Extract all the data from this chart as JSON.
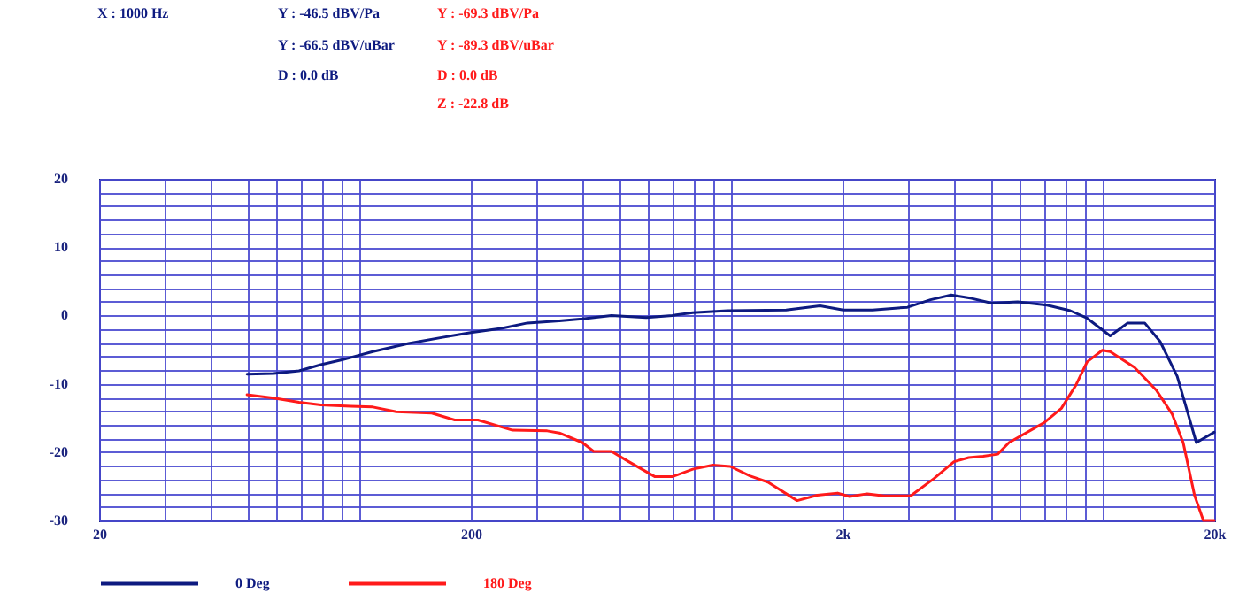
{
  "chart_data": {
    "type": "line",
    "annotations": [
      "X : 1000 Hz",
      "Y : -46.5 dBV/Pa",
      "Y : -66.5 dBV/uBar",
      "D : 0.0 dB",
      "Y : -69.3 dBV/Pa",
      "Y : -89.3 dBV/uBar",
      "D : 0.0 dB",
      "Z : -22.8 dB"
    ],
    "series": [
      {
        "name": "0 Deg",
        "color": "#0d1a80",
        "x": [
          50,
          59,
          69,
          79,
          90,
          109,
          136,
          168,
          200,
          242,
          284,
          346,
          399,
          478,
          593,
          697,
          791,
          982,
          1410,
          1740,
          2010,
          2410,
          2990,
          3450,
          3920,
          4450,
          5040,
          5920,
          7100,
          8200,
          9100,
          10500,
          11700,
          13000,
          14300,
          15900,
          17900,
          20000
        ],
        "values": [
          -8.6,
          -8.5,
          -8.1,
          -7.2,
          -6.5,
          -5.3,
          -4.1,
          -3.2,
          -2.5,
          -1.9,
          -1.1,
          -0.8,
          -0.5,
          0,
          -0.3,
          0,
          0.4,
          0.7,
          0.8,
          1.4,
          0.8,
          0.8,
          1.2,
          2.3,
          3.0,
          2.5,
          1.8,
          2.0,
          1.5,
          0.7,
          -0.4,
          -3.0,
          -1.1,
          -1.1,
          -3.8,
          -8.9,
          -18.6,
          -17.1
        ]
      },
      {
        "name": "180 Deg",
        "color": "#ff1a1a",
        "x": [
          50,
          59,
          69,
          79,
          95,
          109,
          126,
          157,
          181,
          209,
          259,
          321,
          346,
          399,
          428,
          478,
          532,
          626,
          697,
          791,
          895,
          998,
          1130,
          1260,
          1510,
          1710,
          1940,
          2090,
          2330,
          2590,
          3050,
          3520,
          3990,
          4370,
          4780,
          5230,
          5610,
          6970,
          7760,
          8490,
          9100,
          10000,
          10500,
          12200,
          14000,
          15400,
          16500,
          17700,
          18700,
          20000
        ],
        "values": [
          -11.6,
          -12.1,
          -12.7,
          -13.1,
          -13.3,
          -13.4,
          -14.1,
          -14.3,
          -15.3,
          -15.3,
          -16.8,
          -16.9,
          -17.2,
          -18.6,
          -19.9,
          -19.9,
          -21.4,
          -23.6,
          -23.6,
          -22.5,
          -21.9,
          -22.1,
          -23.5,
          -24.4,
          -27.1,
          -26.3,
          -26.0,
          -26.5,
          -26.1,
          -26.4,
          -26.4,
          -23.9,
          -21.4,
          -20.8,
          -20.6,
          -20.3,
          -18.6,
          -15.7,
          -13.6,
          -10.2,
          -6.8,
          -5.1,
          -5.3,
          -7.6,
          -11.0,
          -14.4,
          -18.6,
          -26.3,
          -30,
          -30
        ]
      }
    ],
    "log": "x",
    "xlim": [
      20,
      20000
    ],
    "xticks": [
      20,
      {
        "value": 30,
        "label": null
      },
      {
        "value": 40,
        "label": null
      },
      {
        "value": 50,
        "label": null
      },
      {
        "value": 60,
        "label": null
      },
      {
        "value": 70,
        "label": null
      },
      {
        "value": 80,
        "label": null
      },
      {
        "value": 90,
        "label": null
      },
      {
        "value": 100,
        "label": null
      },
      200,
      {
        "value": 300,
        "label": null
      },
      {
        "value": 400,
        "label": null
      },
      {
        "value": 500,
        "label": null
      },
      {
        "value": 600,
        "label": null
      },
      {
        "value": 700,
        "label": null
      },
      {
        "value": 800,
        "label": null
      },
      {
        "value": 900,
        "label": null
      },
      {
        "value": 1000,
        "label": null
      },
      {
        "value": 2000,
        "label": "2k"
      },
      {
        "value": 3000,
        "label": null
      },
      {
        "value": 4000,
        "label": null
      },
      {
        "value": 5000,
        "label": null
      },
      {
        "value": 6000,
        "label": null
      },
      {
        "value": 7000,
        "label": null
      },
      {
        "value": 8000,
        "label": null
      },
      {
        "value": 9000,
        "label": null
      },
      {
        "value": 10000,
        "label": null
      },
      {
        "value": 20000,
        "label": "20k"
      }
    ],
    "ylim": [
      -30,
      20
    ],
    "yticks": [
      -30,
      {
        "value": -28,
        "label": null
      },
      {
        "value": -26,
        "label": null
      },
      {
        "value": -24,
        "label": null
      },
      {
        "value": -22,
        "label": null
      },
      -20,
      {
        "value": -18,
        "label": null
      },
      {
        "value": -16,
        "label": null
      },
      {
        "value": -14,
        "label": null
      },
      {
        "value": -12,
        "label": null
      },
      -10,
      {
        "value": -8,
        "label": null
      },
      {
        "value": -6,
        "label": null
      },
      {
        "value": -4,
        "label": null
      },
      {
        "value": -2,
        "label": null
      },
      0,
      {
        "value": 2,
        "label": null
      },
      {
        "value": 4,
        "label": null
      },
      {
        "value": 6,
        "label": null
      },
      {
        "value": 8,
        "label": null
      },
      10,
      {
        "value": 12,
        "label": null
      },
      {
        "value": 14,
        "label": null
      },
      {
        "value": 16,
        "label": null
      },
      {
        "value": 18,
        "label": null
      },
      20
    ],
    "grid": true,
    "legend": "bottom",
    "line_style": "solid",
    "marker": "none"
  }
}
